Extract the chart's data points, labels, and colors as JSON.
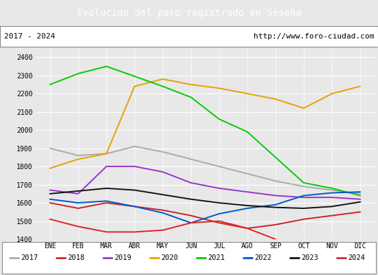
{
  "title": "Evolucion del paro registrado en Seseña",
  "subtitle_left": "2017 - 2024",
  "subtitle_right": "http://www.foro-ciudad.com",
  "background_color": "#e8e8e8",
  "plot_background": "#e8e8e8",
  "months": [
    "ENE",
    "FEB",
    "MAR",
    "ABR",
    "MAY",
    "JUN",
    "JUL",
    "AGO",
    "SEP",
    "OCT",
    "NOV",
    "DIC"
  ],
  "ylim": [
    1400,
    2450
  ],
  "yticks": [
    1400,
    1500,
    1600,
    1700,
    1800,
    1900,
    2000,
    2100,
    2200,
    2300,
    2400
  ],
  "series": {
    "2017": {
      "color": "#aaaaaa",
      "values": [
        1900,
        1860,
        1870,
        1910,
        1880,
        1840,
        1800,
        1760,
        1720,
        1690,
        1670,
        1650
      ]
    },
    "2018": {
      "color": "#cc2222",
      "values": [
        1600,
        1570,
        1600,
        1580,
        1560,
        1530,
        1490,
        1460,
        1480,
        1510,
        1530,
        1550
      ]
    },
    "2019": {
      "color": "#9933cc",
      "values": [
        1670,
        1650,
        1800,
        1800,
        1770,
        1710,
        1680,
        1660,
        1640,
        1630,
        1630,
        1620
      ]
    },
    "2020": {
      "color": "#e8a000",
      "values": [
        1790,
        1840,
        1870,
        2240,
        2280,
        2250,
        2230,
        2200,
        2170,
        2120,
        2200,
        2240
      ]
    },
    "2021": {
      "color": "#00cc00",
      "values": [
        2250,
        2310,
        2350,
        2295,
        2240,
        2180,
        2060,
        1990,
        1850,
        1710,
        1680,
        1640
      ]
    },
    "2022": {
      "color": "#0055cc",
      "values": [
        1620,
        1600,
        1610,
        1580,
        1545,
        1490,
        1540,
        1570,
        1590,
        1640,
        1655,
        1660
      ]
    },
    "2023": {
      "color": "#111111",
      "values": [
        1650,
        1665,
        1680,
        1670,
        1645,
        1620,
        1600,
        1585,
        1575,
        1570,
        1580,
        1605
      ]
    },
    "2024": {
      "color": "#dd2222",
      "values": [
        1510,
        1470,
        1440,
        1440,
        1450,
        1490,
        1500,
        1460,
        1400,
        null,
        null,
        null
      ]
    }
  }
}
